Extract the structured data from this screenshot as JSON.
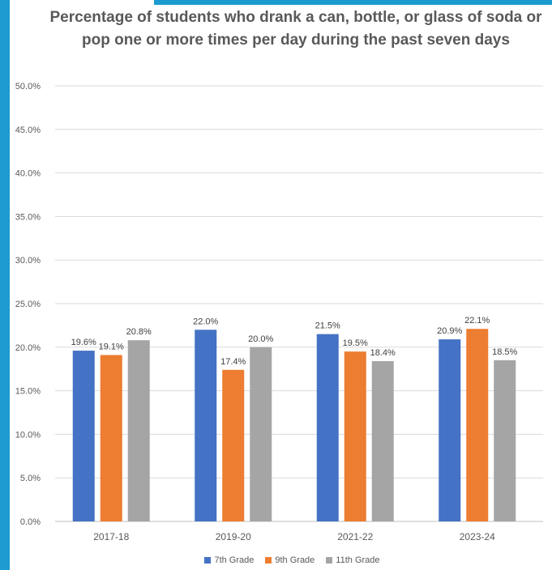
{
  "chart_data": {
    "type": "bar",
    "title": "Percentage of students who drank a can, bottle, or glass of soda or pop one or more times per day during the past seven days",
    "categories": [
      "2017-18",
      "2019-20",
      "2021-22",
      "2023-24"
    ],
    "series": [
      {
        "name": "7th Grade",
        "color": "#4472c4",
        "values": [
          19.6,
          22.0,
          21.5,
          20.9
        ],
        "labels": [
          "19.6%",
          "22.0%",
          "21.5%",
          "20.9%"
        ]
      },
      {
        "name": "9th Grade",
        "color": "#ed7d31",
        "values": [
          19.1,
          17.4,
          19.5,
          22.1
        ],
        "labels": [
          "19.1%",
          "17.4%",
          "19.5%",
          "22.1%"
        ]
      },
      {
        "name": "11th Grade",
        "color": "#a5a5a5",
        "values": [
          20.8,
          20.0,
          18.4,
          18.5
        ],
        "labels": [
          "20.8%",
          "20.0%",
          "18.4%",
          "18.5%"
        ]
      }
    ],
    "ylim": [
      0,
      50
    ],
    "yticks": [
      "0.0%",
      "5.0%",
      "10.0%",
      "15.0%",
      "20.0%",
      "25.0%",
      "30.0%",
      "35.0%",
      "40.0%",
      "45.0%",
      "50.0%"
    ],
    "xlabel": "",
    "ylabel": "",
    "grid": true,
    "legend_position": "bottom"
  },
  "colors": {
    "frame_accent": "#1b9bd0",
    "gridline": "#d9d9d9",
    "text": "#595959"
  }
}
